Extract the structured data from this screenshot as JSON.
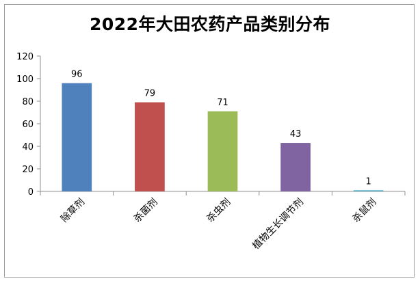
{
  "chart_data": {
    "type": "bar",
    "title": "2022年大田农药产品类别分布",
    "categories": [
      "除草剂",
      "杀菌剂",
      "杀虫剂",
      "植物生长调节剂",
      "杀鼠剂"
    ],
    "values": [
      96,
      79,
      71,
      43,
      1
    ],
    "data_labels": [
      "96",
      "79",
      "71",
      "43",
      "1"
    ],
    "colors": [
      "#4f81bd",
      "#c0504d",
      "#9bbb59",
      "#8064a2",
      "#4bacc6"
    ],
    "ylim": [
      0,
      120
    ],
    "yticks": [
      0,
      20,
      40,
      60,
      80,
      100,
      120
    ],
    "xlabel": "",
    "ylabel": "",
    "grid": false,
    "legend": "none"
  }
}
